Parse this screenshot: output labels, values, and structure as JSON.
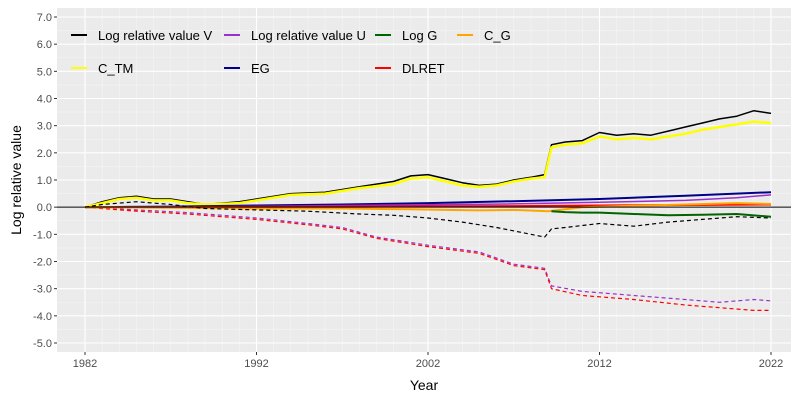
{
  "chart_data": {
    "type": "line",
    "title": "",
    "xlabel": "Year",
    "ylabel": "Log relative value",
    "xlim": [
      1982,
      2022
    ],
    "ylim": [
      -5.0,
      7.0
    ],
    "x_ticks": [
      1982,
      1992,
      2002,
      2012,
      2022
    ],
    "y_ticks": [
      -5.0,
      -4.0,
      -3.0,
      -2.0,
      -1.0,
      0.0,
      1.0,
      2.0,
      3.0,
      4.0,
      5.0,
      6.0,
      7.0
    ],
    "y_tick_labels": [
      "-5.0",
      "-4.0",
      "-3.0",
      "-2.0",
      "-1.0",
      "0.0",
      "1.0",
      "2.0",
      "3.0",
      "4.0",
      "5.0",
      "6.0",
      "7.0"
    ],
    "x_tick_labels": [
      "1982",
      "1992",
      "2002",
      "2012",
      "2022"
    ],
    "reference_line_y": 0,
    "legend": [
      {
        "label": "Log relative value V",
        "color": "#000000"
      },
      {
        "label": "Log relative value U",
        "color": "#9932CC"
      },
      {
        "label": "Log G",
        "color": "#006400"
      },
      {
        "label": "C_G",
        "color": "#FFA500"
      },
      {
        "label": "C_TM",
        "color": "#FFFF00"
      },
      {
        "label": "EG",
        "color": "#00008B"
      },
      {
        "label": "DLRET",
        "color": "#FF0000"
      }
    ],
    "series": [
      {
        "name": "Log relative value V",
        "color": "#000000",
        "style": "solid",
        "width": 1.5,
        "x": [
          1982,
          1983,
          1984,
          1985,
          1986,
          1987,
          1988,
          1989,
          1990,
          1991,
          1992,
          1994,
          1996,
          1998,
          2000,
          2001,
          2002,
          2003,
          2004,
          2005,
          2006,
          2007,
          2008,
          2008.8,
          2009.2,
          2010,
          2011,
          2012,
          2013,
          2014,
          2015,
          2016,
          2017,
          2018,
          2019,
          2020,
          2021,
          2022
        ],
        "y": [
          0.0,
          0.2,
          0.35,
          0.4,
          0.3,
          0.3,
          0.2,
          0.1,
          0.15,
          0.2,
          0.3,
          0.5,
          0.55,
          0.75,
          0.95,
          1.15,
          1.2,
          1.05,
          0.9,
          0.8,
          0.85,
          1.0,
          1.1,
          1.2,
          2.3,
          2.4,
          2.45,
          2.75,
          2.65,
          2.7,
          2.65,
          2.8,
          2.95,
          3.1,
          3.25,
          3.35,
          3.55,
          3.45
        ]
      },
      {
        "name": "C_TM",
        "color": "#FFFF00",
        "style": "solid",
        "width": 2.5,
        "x": [
          1982,
          1983,
          1984,
          1985,
          1986,
          1987,
          1988,
          1989,
          1990,
          1991,
          1992,
          1994,
          1996,
          1998,
          2000,
          2001,
          2002,
          2003,
          2004,
          2005,
          2006,
          2007,
          2008,
          2008.8,
          2009.2,
          2010,
          2011,
          2012,
          2013,
          2014,
          2015,
          2016,
          2017,
          2018,
          2019,
          2020,
          2021,
          2022
        ],
        "y": [
          0.0,
          0.15,
          0.3,
          0.35,
          0.25,
          0.25,
          0.15,
          0.1,
          0.12,
          0.15,
          0.25,
          0.45,
          0.5,
          0.7,
          0.85,
          1.05,
          1.1,
          0.95,
          0.8,
          0.75,
          0.8,
          0.95,
          1.05,
          1.1,
          2.2,
          2.3,
          2.35,
          2.6,
          2.5,
          2.55,
          2.5,
          2.6,
          2.7,
          2.85,
          2.95,
          3.05,
          3.15,
          3.1
        ]
      },
      {
        "name": "EG",
        "color": "#00008B",
        "style": "solid",
        "width": 2,
        "x": [
          1982,
          1987,
          1992,
          1997,
          2002,
          2007,
          2012,
          2017,
          2022
        ],
        "y": [
          0.0,
          0.02,
          0.06,
          0.1,
          0.15,
          0.22,
          0.3,
          0.42,
          0.55
        ]
      },
      {
        "name": "Log relative value U",
        "color": "#9932CC",
        "style": "solid",
        "width": 1.5,
        "x": [
          1982,
          1987,
          1992,
          1997,
          2002,
          2007,
          2012,
          2017,
          2020,
          2022
        ],
        "y": [
          0.0,
          0.01,
          0.03,
          0.06,
          0.09,
          0.12,
          0.18,
          0.25,
          0.35,
          0.45
        ]
      },
      {
        "name": "Log relative value U (dashed)",
        "color": "#9932CC",
        "style": "dashed",
        "width": 1.2,
        "x": [
          1982,
          1985,
          1988,
          1992,
          1995,
          1997,
          1999,
          2002,
          2005,
          2007,
          2008.8,
          2009.2,
          2011,
          2014,
          2017,
          2019,
          2021,
          2022
        ],
        "y": [
          0.0,
          -0.1,
          -0.2,
          -0.4,
          -0.6,
          -0.75,
          -1.1,
          -1.4,
          -1.65,
          -2.1,
          -2.25,
          -2.9,
          -3.1,
          -3.25,
          -3.4,
          -3.5,
          -3.4,
          -3.45
        ]
      },
      {
        "name": "DLRET",
        "color": "#FF0000",
        "style": "solid",
        "width": 2,
        "x": [
          1982,
          1987,
          1992,
          1997,
          2002,
          2007,
          2012,
          2017,
          2022
        ],
        "y": [
          0.0,
          0.0,
          0.01,
          0.02,
          0.03,
          0.04,
          0.06,
          0.08,
          0.1
        ]
      },
      {
        "name": "DLRET (dashed)",
        "color": "#FF0000",
        "style": "dashed",
        "width": 1.2,
        "x": [
          1982,
          1985,
          1988,
          1992,
          1995,
          1997,
          1999,
          2002,
          2005,
          2007,
          2008.8,
          2009.2,
          2011,
          2014,
          2017,
          2019,
          2021,
          2022
        ],
        "y": [
          0.0,
          -0.15,
          -0.25,
          -0.45,
          -0.65,
          -0.8,
          -1.15,
          -1.45,
          -1.7,
          -2.15,
          -2.3,
          -3.0,
          -3.25,
          -3.4,
          -3.6,
          -3.7,
          -3.8,
          -3.8
        ]
      },
      {
        "name": "C_G",
        "color": "#FFA500",
        "style": "solid",
        "width": 2,
        "x": [
          1982,
          1987,
          1992,
          1997,
          2001,
          2003,
          2005,
          2007,
          2009,
          2011,
          2014,
          2017,
          2020,
          2022
        ],
        "y": [
          0.0,
          -0.02,
          -0.05,
          -0.05,
          -0.08,
          -0.1,
          -0.12,
          -0.1,
          -0.15,
          0.0,
          0.05,
          0.1,
          0.15,
          0.12
        ]
      },
      {
        "name": "Log G",
        "color": "#006400",
        "style": "solid",
        "width": 2,
        "x": [
          2009.2,
          2010,
          2011,
          2012,
          2014,
          2016,
          2018,
          2020,
          2022
        ],
        "y": [
          -0.15,
          -0.18,
          -0.2,
          -0.2,
          -0.25,
          -0.3,
          -0.28,
          -0.25,
          -0.35
        ]
      },
      {
        "name": "Log relative value V (dashed)",
        "color": "#000000",
        "style": "dashed",
        "width": 1.2,
        "x": [
          1982,
          1983,
          1985,
          1987,
          1989,
          1992,
          1995,
          1998,
          2000,
          2002,
          2004,
          2006,
          2008,
          2008.8,
          2009.2,
          2010,
          2012,
          2014,
          2016,
          2018,
          2020,
          2022
        ],
        "y": [
          0.0,
          0.1,
          0.2,
          0.1,
          -0.05,
          -0.1,
          -0.15,
          -0.25,
          -0.3,
          -0.4,
          -0.55,
          -0.75,
          -1.0,
          -1.1,
          -0.8,
          -0.75,
          -0.6,
          -0.7,
          -0.55,
          -0.45,
          -0.35,
          -0.4
        ]
      }
    ]
  }
}
